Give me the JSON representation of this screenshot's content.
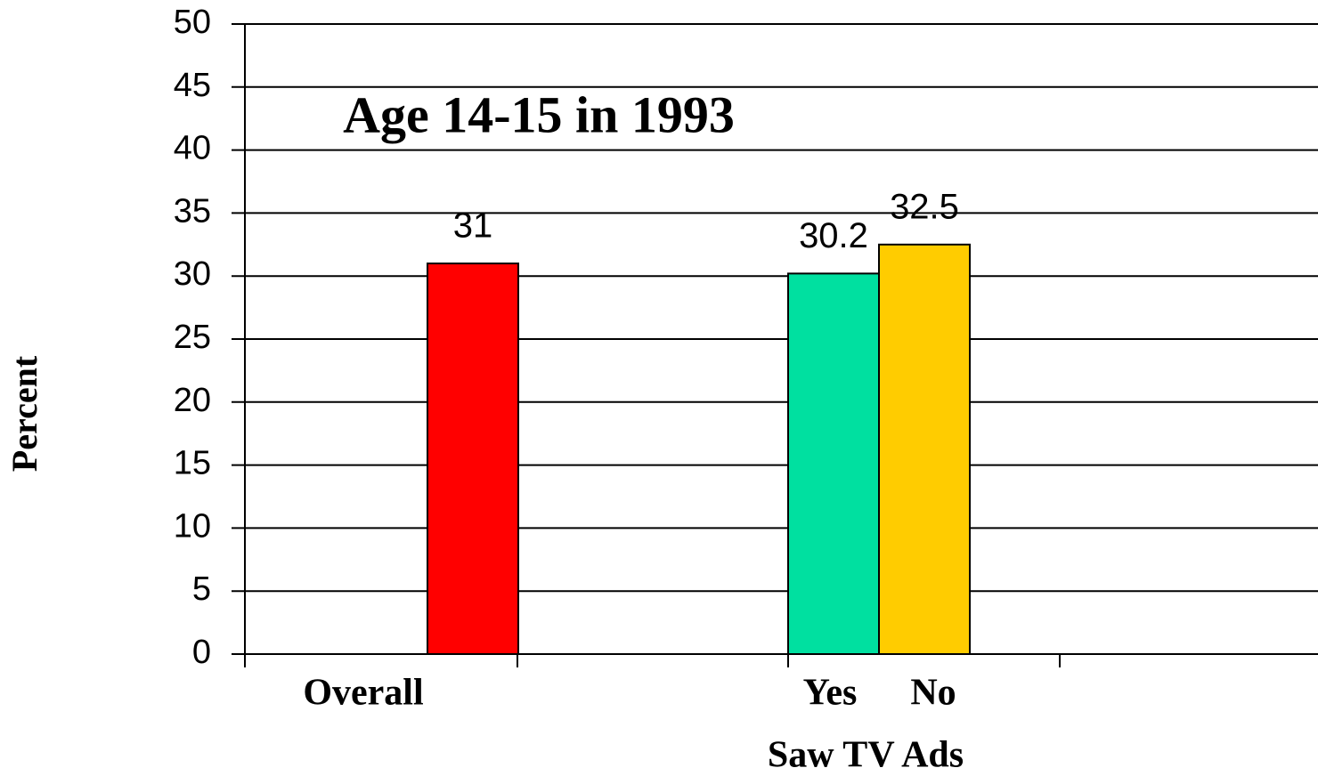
{
  "chart_data": {
    "type": "bar",
    "title": "Age 14-15 in 1993",
    "x_label": "Saw TV Ads",
    "y_label": "Percent",
    "categories": [
      "Overall",
      "Yes",
      "No"
    ],
    "values": [
      31,
      30.2,
      32.5
    ],
    "colors": [
      "#ff0000",
      "#00e0a0",
      "#ffcc00"
    ],
    "ylim": [
      0,
      50
    ],
    "yticks": [
      0,
      5,
      10,
      15,
      20,
      25,
      30,
      35,
      40,
      45,
      50
    ],
    "grid": true
  }
}
